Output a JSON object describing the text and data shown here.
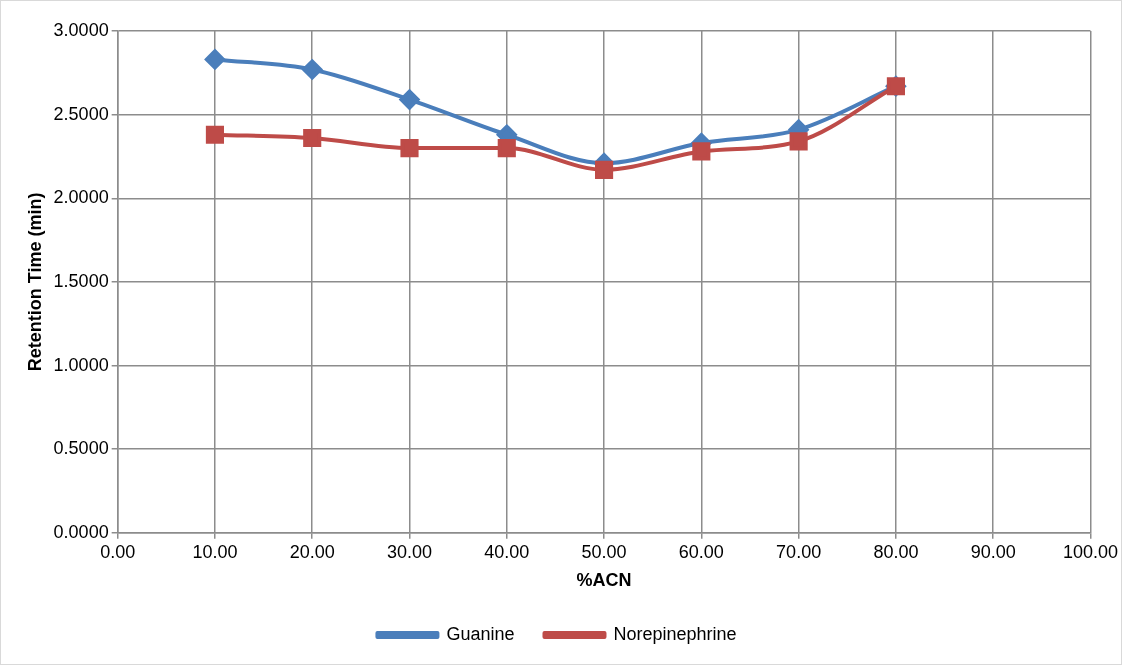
{
  "chart_data": {
    "type": "line",
    "xlabel": "%ACN",
    "ylabel": "Retention Time (min)",
    "x": [
      10,
      20,
      30,
      40,
      50,
      60,
      70,
      80
    ],
    "series": [
      {
        "name": "Guanine",
        "color": "#4a7ebb",
        "marker": "diamond",
        "values": [
          2.83,
          2.77,
          2.59,
          2.38,
          2.21,
          2.33,
          2.41,
          2.67
        ]
      },
      {
        "name": "Norepinephrine",
        "color": "#be4b48",
        "marker": "square",
        "values": [
          2.38,
          2.36,
          2.3,
          2.3,
          2.17,
          2.28,
          2.34,
          2.67
        ]
      }
    ],
    "xlim": [
      0,
      100
    ],
    "xticks": [
      {
        "value": 0,
        "label": "0.00"
      },
      {
        "value": 10,
        "label": "10.00"
      },
      {
        "value": 20,
        "label": "20.00"
      },
      {
        "value": 30,
        "label": "30.00"
      },
      {
        "value": 40,
        "label": "40.00"
      },
      {
        "value": 50,
        "label": "50.00"
      },
      {
        "value": 60,
        "label": "60.00"
      },
      {
        "value": 70,
        "label": "70.00"
      },
      {
        "value": 80,
        "label": "80.00"
      },
      {
        "value": 90,
        "label": "90.00"
      },
      {
        "value": 100,
        "label": "100.00"
      }
    ],
    "ylim": [
      0,
      3
    ],
    "yticks": [
      {
        "value": 0,
        "label": "0.0000"
      },
      {
        "value": 0.5,
        "label": "0.5000"
      },
      {
        "value": 1,
        "label": "1.0000"
      },
      {
        "value": 1.5,
        "label": "1.5000"
      },
      {
        "value": 2,
        "label": "2.0000"
      },
      {
        "value": 2.5,
        "label": "2.5000"
      },
      {
        "value": 3,
        "label": "3.0000"
      }
    ],
    "grid": true,
    "legend": "bottom"
  }
}
